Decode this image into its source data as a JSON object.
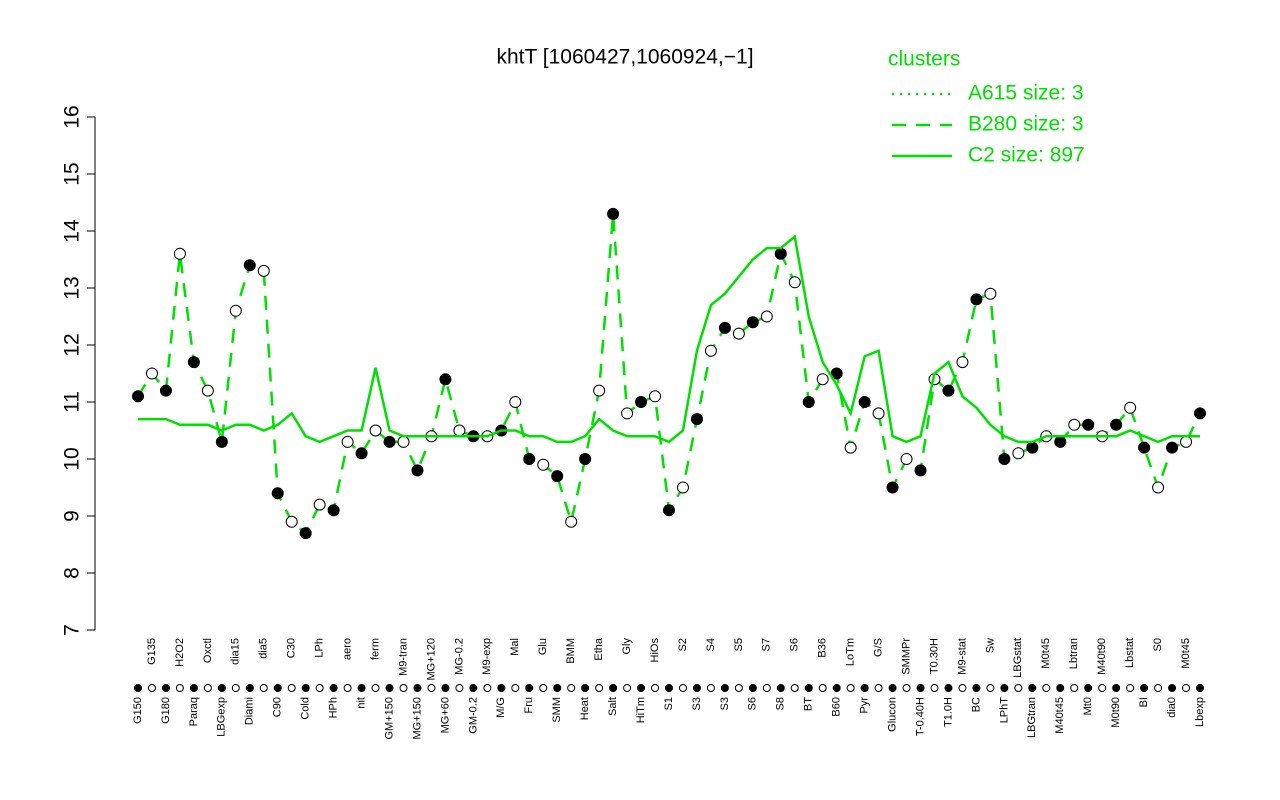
{
  "chart_data": {
    "type": "line",
    "title": "khtT [1060427,1060924,−1]",
    "legend_title": "clusters",
    "legend_position": "top-right",
    "categories": [
      "G150",
      "G135",
      "G180",
      "H2O2",
      "Paraq",
      "Oxctl",
      "LBGexp",
      "dia15",
      "Diami",
      "dia5",
      "C90",
      "C30",
      "Cold",
      "LPh",
      "HPh",
      "aero",
      "nit",
      "ferm",
      "GM+150",
      "M9-tran",
      "MG+150",
      "MG+120",
      "MG+60",
      "MG-0.2",
      "GM-0.2",
      "M9-exp",
      "M/G",
      "Mal",
      "Fru",
      "Glu",
      "SMM",
      "BMM",
      "Heat",
      "Etha",
      "Salt",
      "Gly",
      "HiTm",
      "HiOs",
      "S1",
      "S2",
      "S3",
      "S4",
      "S3",
      "S5",
      "S6",
      "S7",
      "S8",
      "S6",
      "BT",
      "B36",
      "B60",
      "LoTm",
      "Pyr",
      "G/S",
      "Glucon",
      "SMMPr",
      "T-0.40H",
      "T0.30H",
      "T1.0H",
      "M9-stat",
      "BC",
      "Sw",
      "LPhT",
      "LBGstat",
      "LBGtran",
      "M0t45",
      "M40t45",
      "Lbtran",
      "Mt0",
      "M40t90",
      "M0t90",
      "Lbstat",
      "BI",
      "S0",
      "dia0",
      "M0t45",
      "Lbexp"
    ],
    "series": [
      {
        "name": "A615 size: 3",
        "color": "#00e000",
        "style": "dotted",
        "markers": false,
        "values": [
          null,
          null,
          null,
          null,
          null,
          null,
          null,
          null,
          null,
          null,
          null,
          null,
          null,
          null,
          null,
          null,
          null,
          null,
          null,
          null,
          null,
          null,
          null,
          null,
          null,
          null,
          null,
          null,
          null,
          null,
          null,
          null,
          null,
          null,
          null,
          null,
          null,
          null,
          null,
          null,
          null,
          null,
          null,
          null,
          null,
          null,
          null,
          null,
          null,
          null,
          null,
          null,
          null,
          null,
          null,
          null,
          null,
          null,
          null,
          null,
          null,
          null,
          null,
          null,
          null,
          null,
          null,
          null,
          null,
          null,
          null,
          null,
          null,
          null,
          null,
          null,
          null
        ]
      },
      {
        "name": "B280 size: 3",
        "color": "#00e000",
        "style": "dashed",
        "markers": true,
        "values": [
          11.1,
          11.5,
          11.2,
          13.6,
          11.7,
          11.2,
          10.3,
          12.6,
          13.4,
          13.3,
          9.4,
          8.9,
          8.7,
          9.2,
          9.1,
          10.3,
          10.1,
          10.5,
          10.3,
          10.3,
          9.8,
          10.4,
          11.4,
          10.5,
          10.4,
          10.4,
          10.5,
          11.0,
          10.0,
          9.9,
          9.7,
          8.9,
          10.0,
          11.2,
          14.3,
          10.8,
          11.0,
          11.1,
          9.1,
          9.5,
          10.7,
          11.9,
          12.3,
          12.2,
          12.4,
          12.5,
          13.6,
          13.1,
          11.0,
          11.4,
          11.5,
          10.2,
          11.0,
          10.8,
          9.5,
          10.0,
          9.8,
          11.4,
          11.2,
          11.7,
          12.8,
          12.9,
          10.0,
          10.1,
          10.2,
          10.4,
          10.3,
          10.6,
          10.6,
          10.4,
          10.6,
          10.9,
          10.2,
          9.5,
          10.2,
          10.3,
          10.8
        ]
      },
      {
        "name": "C2 size: 897",
        "color": "#00e000",
        "style": "solid",
        "markers": false,
        "values": [
          10.7,
          10.7,
          10.7,
          10.6,
          10.6,
          10.6,
          10.5,
          10.6,
          10.6,
          10.5,
          10.6,
          10.8,
          10.4,
          10.3,
          10.4,
          10.5,
          10.5,
          11.6,
          10.5,
          10.4,
          10.4,
          10.4,
          10.4,
          10.4,
          10.4,
          10.4,
          10.5,
          10.5,
          10.4,
          10.4,
          10.3,
          10.3,
          10.4,
          10.7,
          10.5,
          10.4,
          10.4,
          10.4,
          10.3,
          10.5,
          11.9,
          12.7,
          12.9,
          13.2,
          13.5,
          13.7,
          13.7,
          13.9,
          12.5,
          11.7,
          11.3,
          10.8,
          11.8,
          11.9,
          10.4,
          10.3,
          10.4,
          11.5,
          11.7,
          11.1,
          10.9,
          10.6,
          10.4,
          10.3,
          10.3,
          10.4,
          10.4,
          10.4,
          10.4,
          10.4,
          10.4,
          10.5,
          10.4,
          10.3,
          10.4,
          10.4,
          10.4
        ]
      }
    ],
    "ylim": [
      7,
      16
    ],
    "yticks": [
      7,
      8,
      9,
      10,
      11,
      12,
      13,
      14,
      15,
      16
    ],
    "grid": false
  }
}
